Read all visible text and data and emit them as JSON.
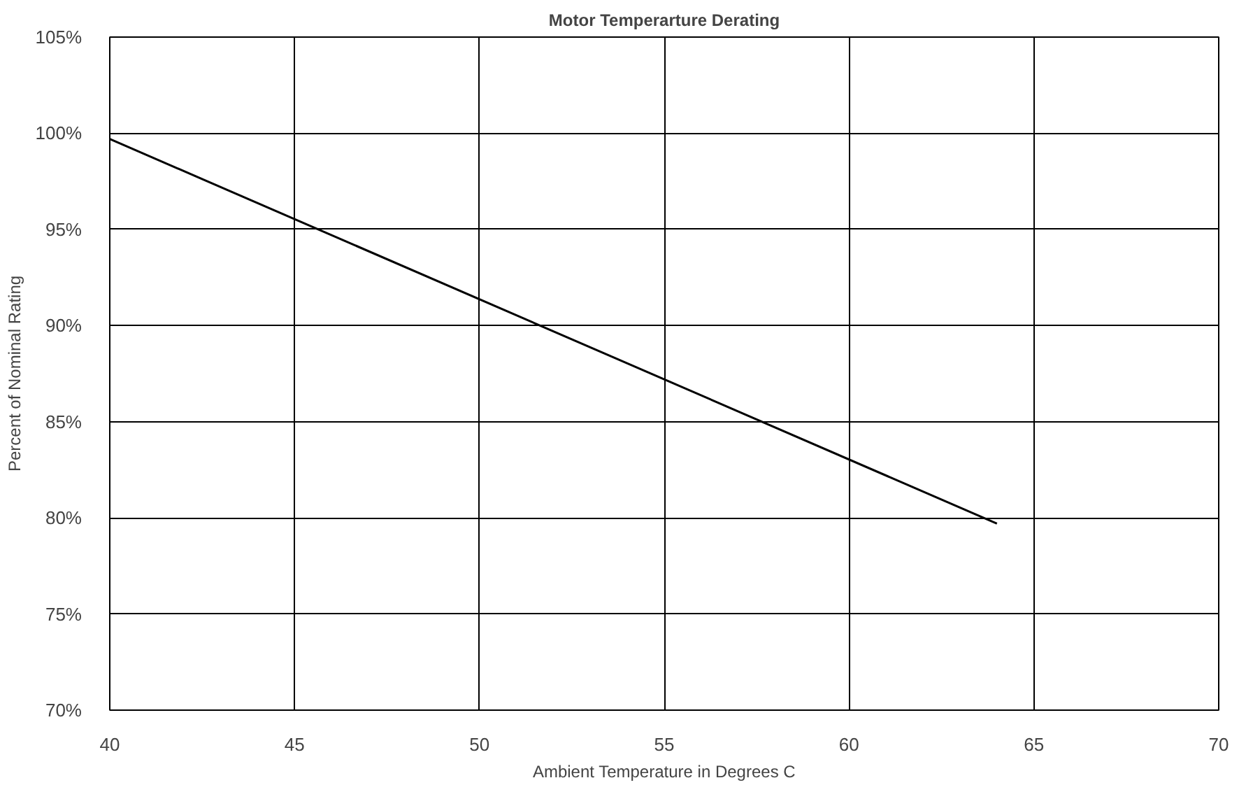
{
  "chart_data": {
    "type": "line",
    "title": "Motor Temperarture Derating",
    "xlabel": "Ambient Temperature in Degrees C",
    "ylabel": "Percent of Nominal Rating",
    "x": [
      40,
      64
    ],
    "series": [
      {
        "color": "#000000",
        "values": [
          99.7,
          79.7
        ]
      }
    ],
    "xlim": [
      40,
      70
    ],
    "xticks": [
      40,
      45,
      50,
      55,
      60,
      65,
      70
    ],
    "ylim": [
      70,
      105
    ],
    "yticks": [
      {
        "value": 70,
        "label": "70%"
      },
      {
        "value": 75,
        "label": "75%"
      },
      {
        "value": 80,
        "label": "80%"
      },
      {
        "value": 85,
        "label": "85%"
      },
      {
        "value": 90,
        "label": "90%"
      },
      {
        "value": 95,
        "label": "95%"
      },
      {
        "value": 100,
        "label": "100%"
      },
      {
        "value": 105,
        "label": "105%"
      }
    ],
    "grid": true,
    "marker": "none",
    "line_style": "solid"
  }
}
